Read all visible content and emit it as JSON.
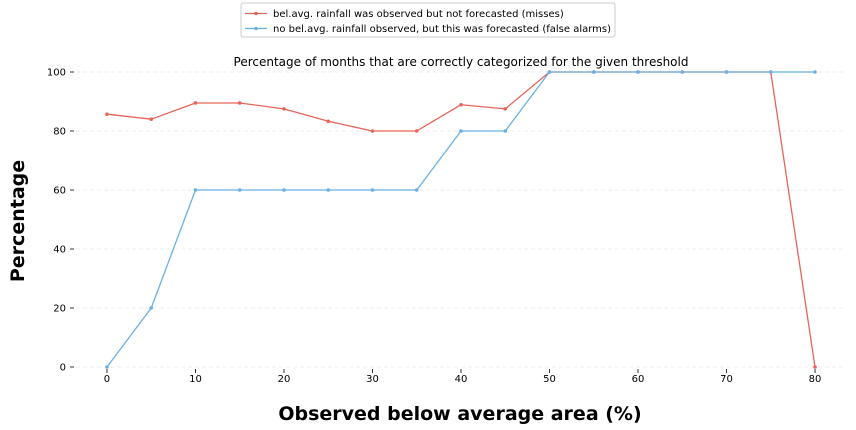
{
  "chart_data": {
    "type": "line",
    "title": "Percentage of months that are correctly categorized for the given threshold",
    "xlabel": "Observed below average area (%)",
    "ylabel": "Percentage",
    "xlim": [
      -3.5,
      83.5
    ],
    "ylim": [
      0,
      100
    ],
    "xticks": [
      0,
      10,
      20,
      30,
      40,
      50,
      60,
      70,
      80
    ],
    "yticks": [
      0,
      20,
      40,
      60,
      80,
      100
    ],
    "grid": "horizontal dashed",
    "legend_position": "top-center",
    "x": [
      0,
      5,
      10,
      15,
      20,
      25,
      30,
      35,
      40,
      45,
      50,
      55,
      60,
      65,
      70,
      75,
      80
    ],
    "series": [
      {
        "name": "bel.avg. rainfall was observed but not forecasted (misses)",
        "color": "#e8645a",
        "values": [
          85.7,
          84,
          89.5,
          89.5,
          87.5,
          83.3,
          80,
          80,
          88.9,
          87.5,
          100,
          100,
          100,
          100,
          100,
          100,
          0
        ]
      },
      {
        "name": "no bel.avg. rainfall observed, but this was forecasted (false alarms)",
        "color": "#6ab0e4",
        "values": [
          0,
          20,
          60,
          60,
          60,
          60,
          60,
          60,
          80,
          80,
          100,
          100,
          100,
          100,
          100,
          100,
          100
        ]
      }
    ]
  }
}
